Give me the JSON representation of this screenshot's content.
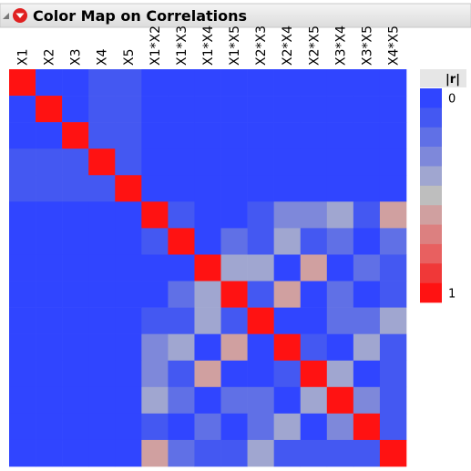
{
  "chart_data": {
    "type": "heatmap",
    "title": "Color Map on Correlations",
    "x": [
      "X1",
      "X2",
      "X3",
      "X4",
      "X5",
      "X1*X2",
      "X1*X3",
      "X1*X4",
      "X1*X5",
      "X2*X3",
      "X2*X4",
      "X2*X5",
      "X3*X4",
      "X3*X5",
      "X4*X5"
    ],
    "values": [
      [
        1,
        0,
        0,
        0.08,
        0.08,
        0,
        0,
        0,
        0,
        0,
        0,
        0,
        0,
        0,
        0
      ],
      [
        0,
        1,
        0,
        0.08,
        0.08,
        0,
        0,
        0,
        0,
        0,
        0,
        0,
        0,
        0,
        0
      ],
      [
        0,
        0,
        1,
        0.08,
        0.08,
        0,
        0,
        0,
        0,
        0,
        0,
        0,
        0,
        0,
        0
      ],
      [
        0.08,
        0.08,
        0.08,
        1,
        0.08,
        0,
        0,
        0,
        0,
        0,
        0,
        0,
        0,
        0,
        0
      ],
      [
        0.08,
        0.08,
        0.08,
        0.08,
        1,
        0,
        0,
        0,
        0,
        0,
        0,
        0,
        0,
        0,
        0
      ],
      [
        0,
        0,
        0,
        0,
        0,
        1,
        0.1,
        0,
        0,
        0.1,
        0.25,
        0.25,
        0.35,
        0.1,
        0.6
      ],
      [
        0,
        0,
        0,
        0,
        0,
        0.1,
        1,
        0,
        0.2,
        0.1,
        0.35,
        0.1,
        0.2,
        0,
        0.2
      ],
      [
        0,
        0,
        0,
        0,
        0,
        0,
        0,
        1,
        0.35,
        0.35,
        0,
        0.6,
        0,
        0.2,
        0.1
      ],
      [
        0,
        0,
        0,
        0,
        0,
        0,
        0.2,
        0.35,
        1,
        0.1,
        0.6,
        0,
        0.2,
        0,
        0.1
      ],
      [
        0,
        0,
        0,
        0,
        0,
        0.1,
        0.1,
        0.35,
        0.1,
        1,
        0,
        0,
        0.2,
        0.2,
        0.4
      ],
      [
        0,
        0,
        0,
        0,
        0,
        0.25,
        0.35,
        0,
        0.6,
        0,
        1,
        0.1,
        0,
        0.4,
        0.1
      ],
      [
        0,
        0,
        0,
        0,
        0,
        0.25,
        0.1,
        0.6,
        0,
        0,
        0.1,
        1,
        0.4,
        0,
        0.1
      ],
      [
        0,
        0,
        0,
        0,
        0,
        0.35,
        0.2,
        0,
        0.2,
        0.2,
        0,
        0.4,
        1,
        0.25,
        0.1
      ],
      [
        0,
        0,
        0,
        0,
        0,
        0.1,
        0,
        0.2,
        0,
        0.2,
        0.4,
        0,
        0.25,
        1,
        0.1
      ],
      [
        0,
        0,
        0,
        0,
        0,
        0.6,
        0.2,
        0.1,
        0.1,
        0.4,
        0.1,
        0.1,
        0.1,
        0.1,
        1
      ]
    ],
    "colorbar_title": "|r|",
    "clim": [
      0,
      1
    ],
    "cticks": [
      0,
      1
    ],
    "colors": [
      "#3045ff",
      "#4458f2",
      "#6070e6",
      "#7e88da",
      "#a0a6d0",
      "#bebebe",
      "#d0a0a0",
      "#dc8080",
      "#e86060",
      "#f03838",
      "#ff1212"
    ]
  }
}
